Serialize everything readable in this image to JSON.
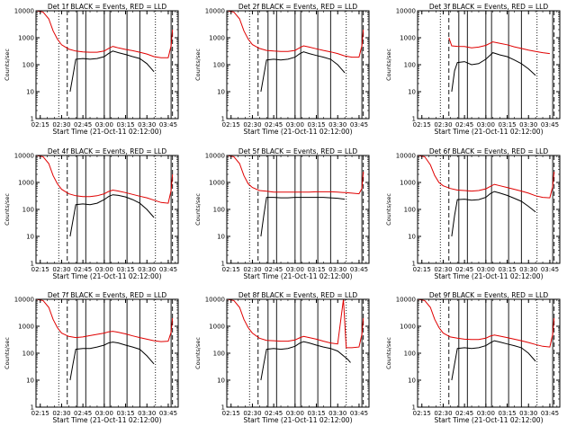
{
  "panels": [
    {
      "title": "Det 1f BLACK = Events, RED = LLD",
      "ylabel": "Counts/sec",
      "xlabel": "Start Time (21-Oct-11 02:12:00)"
    },
    {
      "title": "Det 2f BLACK = Events, RED = LLD",
      "ylabel": "Counts/sec",
      "xlabel": "Start Time (21-Oct-11 02:12:00)"
    },
    {
      "title": "Det 3f BLACK = Events, RED = LLD",
      "ylabel": "Counts/sec",
      "xlabel": "Start Time (21-Oct-11 02:12:00)"
    },
    {
      "title": "Det 4f BLACK = Events, RED = LLD",
      "ylabel": "Counts/sec",
      "xlabel": "Start Time (21-Oct-11 02:12:00)"
    },
    {
      "title": "Det 5f BLACK = Events, RED = LLD",
      "ylabel": "Counts/sec",
      "xlabel": "Start Time (21-Oct-11 02:12:00)"
    },
    {
      "title": "Det 6f BLACK = Events, RED = LLD",
      "ylabel": "Counts/sec",
      "xlabel": "Start Time (21-Oct-11 02:12:00)"
    },
    {
      "title": "Det 7f BLACK = Events, RED = LLD",
      "ylabel": "Counts/sec",
      "xlabel": "Start Time (21-Oct-11 02:12:00)"
    },
    {
      "title": "Det 8f BLACK = Events, RED = LLD",
      "ylabel": "Counts/sec",
      "xlabel": "Start Time (21-Oct-11 02:12:00)"
    },
    {
      "title": "Det 9f BLACK = Events, RED = LLD",
      "ylabel": "Counts/sec",
      "xlabel": "Start Time (21-Oct-11 02:12:00)"
    }
  ],
  "chart_data": {
    "type": "line",
    "yscale": "log",
    "ylim": [
      1,
      10000
    ],
    "y_ticks": [
      1,
      10,
      100,
      1000,
      10000
    ],
    "y_tick_labels": [
      "1",
      "10",
      "100",
      "1000",
      "10000"
    ],
    "xlim": [
      "02:12",
      "03:52"
    ],
    "x_ticks": [
      "02:15",
      "02:30",
      "02:45",
      "03:00",
      "03:15",
      "03:30",
      "03:45"
    ],
    "markers": {
      "dotted": [
        "02:28",
        "03:36"
      ],
      "dashed": [
        "02:34",
        "03:48"
      ],
      "solid": [
        "02:41",
        "02:47",
        "03:00",
        "03:04",
        "03:16",
        "03:25",
        "03:47"
      ]
    },
    "series_colors": {
      "events": "#000000",
      "lld": "#e00000"
    },
    "panels": [
      {
        "lld": {
          "x": [
            "02:12",
            "02:17",
            "02:21",
            "02:24",
            "02:27",
            "02:30",
            "02:35",
            "02:40",
            "02:45",
            "02:50",
            "02:55",
            "03:00",
            "03:03",
            "03:06",
            "03:10",
            "03:15",
            "03:20",
            "03:25",
            "03:30",
            "03:35",
            "03:40",
            "03:45",
            "03:47",
            "03:48"
          ],
          "y": [
            10000,
            9000,
            5000,
            1800,
            900,
            550,
            380,
            320,
            300,
            290,
            290,
            320,
            400,
            480,
            420,
            370,
            330,
            290,
            250,
            200,
            180,
            180,
            500,
            2000
          ]
        },
        "events": {
          "x": [
            "02:36",
            "02:38",
            "02:40",
            "02:45",
            "02:50",
            "02:55",
            "03:00",
            "03:03",
            "03:06",
            "03:10",
            "03:15",
            "03:20",
            "03:25",
            "03:30",
            "03:35"
          ],
          "y": [
            10,
            40,
            160,
            170,
            160,
            170,
            200,
            260,
            320,
            280,
            240,
            200,
            170,
            110,
            55
          ]
        }
      },
      {
        "lld": {
          "x": [
            "02:12",
            "02:17",
            "02:21",
            "02:24",
            "02:27",
            "02:30",
            "02:35",
            "02:40",
            "02:45",
            "02:50",
            "02:55",
            "03:00",
            "03:03",
            "03:06",
            "03:10",
            "03:15",
            "03:20",
            "03:25",
            "03:30",
            "03:35",
            "03:40",
            "03:45",
            "03:47",
            "03:48"
          ],
          "y": [
            10000,
            9000,
            5000,
            1800,
            900,
            560,
            400,
            340,
            320,
            310,
            310,
            340,
            420,
            500,
            450,
            390,
            340,
            300,
            260,
            210,
            190,
            190,
            500,
            2000
          ]
        },
        "events": {
          "x": [
            "02:36",
            "02:38",
            "02:40",
            "02:45",
            "02:50",
            "02:55",
            "03:00",
            "03:03",
            "03:06",
            "03:10",
            "03:15",
            "03:20",
            "03:25",
            "03:30",
            "03:35"
          ],
          "y": [
            10,
            40,
            150,
            160,
            150,
            160,
            190,
            250,
            300,
            260,
            220,
            190,
            160,
            100,
            50
          ]
        }
      },
      {
        "lld": {
          "x": [
            "02:34",
            "02:36",
            "02:40",
            "02:45",
            "02:50",
            "02:55",
            "03:00",
            "03:05",
            "03:10",
            "03:15",
            "03:20",
            "03:25",
            "03:30",
            "03:35",
            "03:40",
            "03:45"
          ],
          "y": [
            1000,
            500,
            480,
            470,
            420,
            450,
            520,
            700,
            620,
            550,
            460,
            400,
            350,
            310,
            280,
            260
          ]
        },
        "events": {
          "x": [
            "02:36",
            "02:38",
            "02:40",
            "02:45",
            "02:50",
            "02:55",
            "03:00",
            "03:05",
            "03:10",
            "03:15",
            "03:20",
            "03:25",
            "03:30",
            "03:35"
          ],
          "y": [
            10,
            60,
            120,
            130,
            100,
            110,
            160,
            280,
            230,
            200,
            150,
            110,
            70,
            40
          ]
        }
      },
      {
        "lld": {
          "x": [
            "02:12",
            "02:17",
            "02:21",
            "02:24",
            "02:27",
            "02:30",
            "02:35",
            "02:40",
            "02:45",
            "02:50",
            "02:55",
            "03:00",
            "03:03",
            "03:06",
            "03:10",
            "03:15",
            "03:20",
            "03:25",
            "03:30",
            "03:35",
            "03:40",
            "03:45",
            "03:47",
            "03:48"
          ],
          "y": [
            10000,
            9000,
            5000,
            1800,
            900,
            560,
            380,
            320,
            300,
            300,
            320,
            380,
            460,
            520,
            480,
            420,
            360,
            310,
            270,
            220,
            180,
            170,
            500,
            2000
          ]
        },
        "events": {
          "x": [
            "02:36",
            "02:38",
            "02:40",
            "02:45",
            "02:50",
            "02:55",
            "03:00",
            "03:03",
            "03:06",
            "03:10",
            "03:15",
            "03:20",
            "03:25",
            "03:30",
            "03:35"
          ],
          "y": [
            10,
            40,
            150,
            160,
            150,
            170,
            230,
            300,
            350,
            330,
            290,
            230,
            170,
            100,
            50
          ]
        }
      },
      {
        "lld": {
          "x": [
            "02:12",
            "02:17",
            "02:21",
            "02:24",
            "02:27",
            "02:30",
            "02:35",
            "02:40",
            "02:45",
            "02:50",
            "02:55",
            "03:00",
            "03:05",
            "03:10",
            "03:15",
            "03:20",
            "03:25",
            "03:30",
            "03:35",
            "03:40",
            "03:45",
            "03:47",
            "03:48"
          ],
          "y": [
            10000,
            9000,
            5000,
            1800,
            900,
            650,
            500,
            470,
            440,
            440,
            440,
            440,
            440,
            440,
            450,
            450,
            450,
            440,
            420,
            400,
            380,
            600,
            2500
          ]
        },
        "events": {
          "x": [
            "02:36",
            "02:38",
            "02:40",
            "02:45",
            "02:50",
            "02:55",
            "03:00",
            "03:05",
            "03:10",
            "03:15",
            "03:20",
            "03:25",
            "03:30",
            "03:35"
          ],
          "y": [
            10,
            60,
            280,
            280,
            270,
            270,
            280,
            280,
            280,
            280,
            280,
            270,
            260,
            240
          ]
        }
      },
      {
        "lld": {
          "x": [
            "02:12",
            "02:17",
            "02:21",
            "02:24",
            "02:27",
            "02:30",
            "02:35",
            "02:40",
            "02:45",
            "02:50",
            "02:55",
            "03:00",
            "03:03",
            "03:06",
            "03:10",
            "03:15",
            "03:20",
            "03:25",
            "03:30",
            "03:35",
            "03:40",
            "03:45",
            "03:47",
            "03:48"
          ],
          "y": [
            10000,
            9000,
            4500,
            1800,
            1000,
            750,
            600,
            520,
            500,
            480,
            500,
            580,
            700,
            850,
            750,
            650,
            560,
            480,
            400,
            320,
            280,
            270,
            700,
            2500
          ]
        },
        "events": {
          "x": [
            "02:36",
            "02:38",
            "02:40",
            "02:45",
            "02:50",
            "02:55",
            "03:00",
            "03:03",
            "03:06",
            "03:10",
            "03:15",
            "03:20",
            "03:25",
            "03:30",
            "03:35"
          ],
          "y": [
            10,
            60,
            230,
            240,
            220,
            230,
            280,
            380,
            460,
            400,
            330,
            260,
            200,
            130,
            80
          ]
        }
      },
      {
        "lld": {
          "x": [
            "02:12",
            "02:17",
            "02:21",
            "02:24",
            "02:27",
            "02:30",
            "02:35",
            "02:40",
            "02:45",
            "02:50",
            "02:55",
            "03:00",
            "03:03",
            "03:06",
            "03:10",
            "03:15",
            "03:20",
            "03:25",
            "03:30",
            "03:35",
            "03:40",
            "03:45",
            "03:47",
            "03:48"
          ],
          "y": [
            10000,
            9000,
            5000,
            1800,
            900,
            560,
            420,
            380,
            400,
            450,
            500,
            560,
            620,
            650,
            600,
            520,
            440,
            380,
            330,
            290,
            270,
            280,
            600,
            2000
          ]
        },
        "events": {
          "x": [
            "02:36",
            "02:38",
            "02:40",
            "02:45",
            "02:50",
            "02:55",
            "03:00",
            "03:03",
            "03:06",
            "03:10",
            "03:15",
            "03:20",
            "03:25",
            "03:30",
            "03:35"
          ],
          "y": [
            10,
            40,
            140,
            150,
            150,
            170,
            200,
            240,
            260,
            240,
            200,
            170,
            140,
            80,
            40
          ]
        }
      },
      {
        "lld": {
          "x": [
            "02:12",
            "02:17",
            "02:21",
            "02:24",
            "02:27",
            "02:30",
            "02:35",
            "02:40",
            "02:45",
            "02:50",
            "02:55",
            "03:00",
            "03:03",
            "03:06",
            "03:10",
            "03:15",
            "03:20",
            "03:25",
            "03:30",
            "03:34",
            "03:36",
            "03:40",
            "03:45",
            "03:47",
            "03:48"
          ],
          "y": [
            10000,
            9000,
            5000,
            1800,
            900,
            560,
            360,
            300,
            290,
            280,
            280,
            310,
            370,
            420,
            380,
            330,
            280,
            240,
            220,
            10000,
            160,
            160,
            170,
            500,
            2000
          ]
        },
        "events": {
          "x": [
            "02:36",
            "02:38",
            "02:40",
            "02:45",
            "02:50",
            "02:55",
            "03:00",
            "03:03",
            "03:06",
            "03:10",
            "03:15",
            "03:20",
            "03:25",
            "03:30",
            "03:37",
            "03:39"
          ],
          "y": [
            10,
            40,
            140,
            150,
            140,
            150,
            180,
            230,
            270,
            240,
            200,
            170,
            150,
            120,
            60,
            45
          ]
        }
      },
      {
        "lld": {
          "x": [
            "02:12",
            "02:17",
            "02:21",
            "02:24",
            "02:27",
            "02:30",
            "02:35",
            "02:40",
            "02:45",
            "02:50",
            "02:55",
            "03:00",
            "03:03",
            "03:06",
            "03:10",
            "03:15",
            "03:20",
            "03:25",
            "03:30",
            "03:35",
            "03:40",
            "03:45",
            "03:47",
            "03:48"
          ],
          "y": [
            10000,
            9000,
            5000,
            1800,
            900,
            560,
            400,
            360,
            330,
            320,
            320,
            360,
            430,
            470,
            430,
            380,
            330,
            290,
            250,
            210,
            180,
            170,
            500,
            2000
          ]
        },
        "events": {
          "x": [
            "02:36",
            "02:38",
            "02:40",
            "02:45",
            "02:50",
            "02:55",
            "03:00",
            "03:03",
            "03:06",
            "03:10",
            "03:15",
            "03:20",
            "03:25",
            "03:30",
            "03:35"
          ],
          "y": [
            10,
            40,
            150,
            160,
            150,
            160,
            190,
            240,
            290,
            260,
            220,
            190,
            160,
            100,
            50
          ]
        }
      }
    ]
  }
}
